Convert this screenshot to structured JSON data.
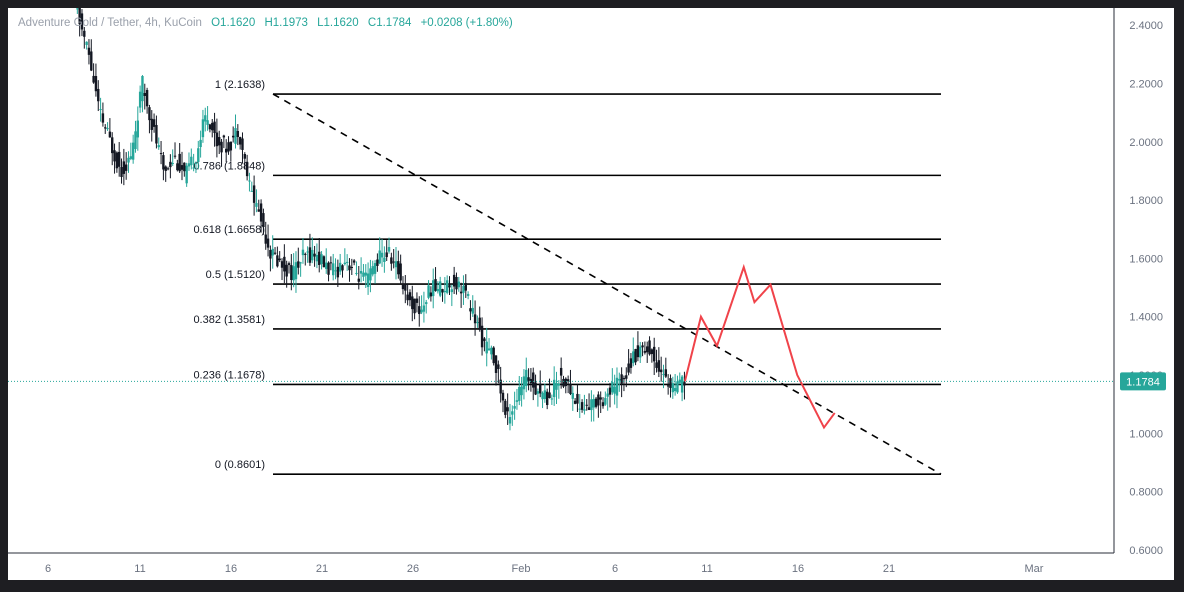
{
  "header": {
    "symbol": "Adventure Gold / Tether, 4h, KuCoin",
    "open": "O1.1620",
    "high": "H1.1973",
    "low": "L1.1620",
    "close": "C1.1784",
    "change": "+0.0208 (+1.80%)"
  },
  "colors": {
    "up": "#26a69a",
    "down": "#131722",
    "projection": "#f0434a",
    "fib_line": "#000000",
    "price_tag": "#26a69a"
  },
  "chart_data": {
    "type": "candlestick",
    "title": "Adventure Gold / Tether, 4h, KuCoin",
    "timeframe": "4h",
    "y_axis": {
      "position": "right",
      "range": [
        0.6,
        2.5
      ],
      "ticks": [
        "2.4000",
        "2.2000",
        "2.0000",
        "1.8000",
        "1.6000",
        "1.4000",
        "1.2000",
        "1.0000",
        "0.8000",
        "0.6000"
      ]
    },
    "x_axis": {
      "ticks": [
        "6",
        "11",
        "16",
        "21",
        "26",
        "Feb",
        "6",
        "11",
        "16",
        "21",
        "Mar"
      ]
    },
    "last_price": "1.1784",
    "fib_levels": [
      {
        "label": "1 (2.1638)",
        "value": 2.1638
      },
      {
        "label": "0.786 (1.8848)",
        "value": 1.8848
      },
      {
        "label": "0.618 (1.6658)",
        "value": 1.6658
      },
      {
        "label": "0.5 (1.5120)",
        "value": 1.512
      },
      {
        "label": "0.382 (1.3581)",
        "value": 1.3581
      },
      {
        "label": "0.236 (1.1678)",
        "value": 1.1678
      },
      {
        "label": "0 (0.8601)",
        "value": 0.8601
      }
    ],
    "trendline": {
      "style": "dashed",
      "from_value": 2.1638,
      "to_value": 0.8601
    },
    "price_path": [
      [
        0,
        2.5
      ],
      [
        3,
        2.3
      ],
      [
        5,
        2.1
      ],
      [
        7,
        2.0
      ],
      [
        9,
        1.9
      ],
      [
        11,
        1.95
      ],
      [
        13,
        2.2
      ],
      [
        15,
        2.05
      ],
      [
        17,
        1.9
      ],
      [
        19,
        1.95
      ],
      [
        21,
        1.88
      ],
      [
        23,
        1.95
      ],
      [
        25,
        2.1
      ],
      [
        27,
        2.0
      ],
      [
        29,
        1.98
      ],
      [
        31,
        2.05
      ],
      [
        33,
        1.85
      ],
      [
        35,
        1.75
      ],
      [
        37,
        1.62
      ],
      [
        39,
        1.58
      ],
      [
        41,
        1.55
      ],
      [
        43,
        1.6
      ],
      [
        45,
        1.62
      ],
      [
        47,
        1.58
      ],
      [
        49,
        1.55
      ],
      [
        51,
        1.6
      ],
      [
        53,
        1.55
      ],
      [
        55,
        1.52
      ],
      [
        57,
        1.6
      ],
      [
        59,
        1.62
      ],
      [
        61,
        1.55
      ],
      [
        63,
        1.45
      ],
      [
        65,
        1.42
      ],
      [
        67,
        1.5
      ],
      [
        69,
        1.5
      ],
      [
        71,
        1.52
      ],
      [
        73,
        1.5
      ],
      [
        75,
        1.4
      ],
      [
        77,
        1.3
      ],
      [
        79,
        1.25
      ],
      [
        81,
        1.05
      ],
      [
        83,
        1.12
      ],
      [
        85,
        1.2
      ],
      [
        87,
        1.15
      ],
      [
        89,
        1.12
      ],
      [
        91,
        1.2
      ],
      [
        93,
        1.15
      ],
      [
        95,
        1.08
      ],
      [
        97,
        1.1
      ],
      [
        99,
        1.12
      ],
      [
        101,
        1.15
      ],
      [
        103,
        1.2
      ],
      [
        105,
        1.27
      ],
      [
        107,
        1.3
      ],
      [
        109,
        1.25
      ],
      [
        111,
        1.18
      ],
      [
        113,
        1.15
      ],
      [
        114,
        1.1784
      ]
    ],
    "projection": [
      [
        114,
        1.1784
      ],
      [
        117,
        1.4
      ],
      [
        120,
        1.3
      ],
      [
        125,
        1.57
      ],
      [
        127,
        1.45
      ],
      [
        130,
        1.51
      ],
      [
        135,
        1.2
      ],
      [
        140,
        1.02
      ],
      [
        142,
        1.07
      ]
    ]
  }
}
